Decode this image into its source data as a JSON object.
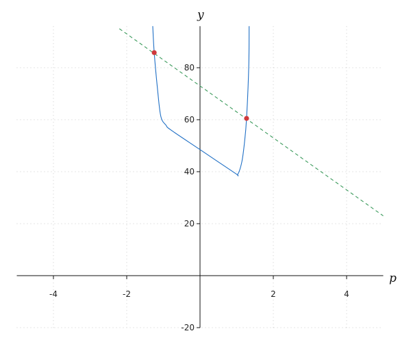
{
  "chart_data": {
    "type": "line",
    "title": "",
    "xlabel": "p",
    "ylabel": "y",
    "xlim": [
      -5,
      5
    ],
    "ylim": [
      -20,
      96
    ],
    "x_ticks": [
      -4,
      -2,
      2,
      4
    ],
    "y_ticks": [
      -20,
      20,
      40,
      60,
      80
    ],
    "grid": true,
    "series": [
      {
        "style": "solid",
        "color": "#1f6fc5",
        "points": [
          [
            -1.29,
            96
          ],
          [
            -1.25,
            85.8
          ],
          [
            -1.16,
            71.8
          ],
          [
            -1.07,
            61.3
          ],
          [
            -0.93,
            57.9
          ],
          [
            -0.79,
            56
          ],
          [
            0,
            48.5
          ],
          [
            0.95,
            39.5
          ],
          [
            1.03,
            39
          ],
          [
            1.14,
            43.7
          ],
          [
            1.21,
            50.8
          ],
          [
            1.27,
            60.5
          ],
          [
            1.33,
            80.5
          ],
          [
            1.34,
            96
          ]
        ]
      },
      {
        "style": "dashed",
        "color": "#3a9a5b",
        "points": [
          [
            -2.2,
            95
          ],
          [
            5,
            23
          ]
        ]
      }
    ],
    "markers": {
      "color": "#d0393b",
      "points": [
        [
          -1.25,
          85.8
        ],
        [
          1.27,
          60.5
        ]
      ]
    }
  }
}
